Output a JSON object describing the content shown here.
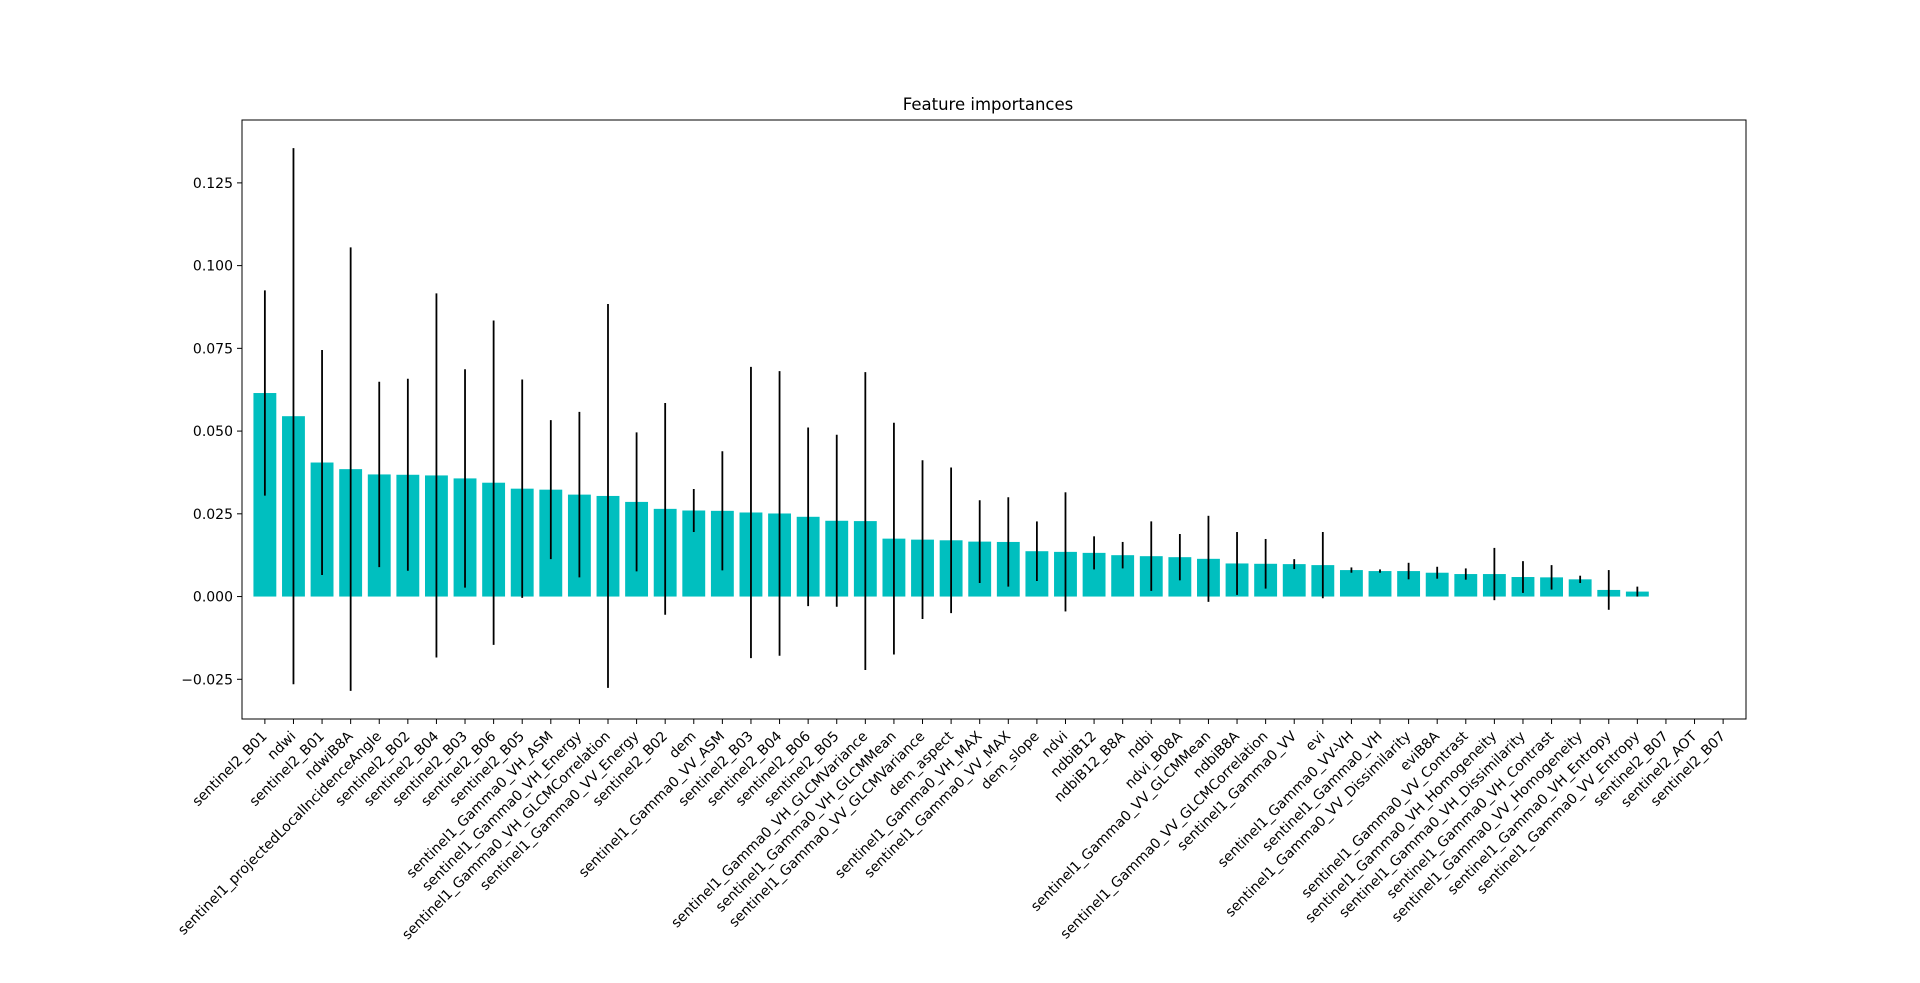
{
  "chart_data": {
    "type": "bar",
    "title": "Feature importances",
    "xlabel": "",
    "ylabel": "",
    "ylim": [
      -0.037,
      0.144
    ],
    "yticks": [
      -0.025,
      0.0,
      0.025,
      0.05,
      0.075,
      0.1,
      0.125
    ],
    "ytick_labels": [
      "−0.025",
      "0.000",
      "0.025",
      "0.050",
      "0.075",
      "0.100",
      "0.125"
    ],
    "grid": false,
    "bar_color": "#00bfbf",
    "error_bar_color": "#000000",
    "categories": [
      "sentinel2_B01",
      "ndwi",
      "sentinel2_B01",
      "ndwiB8A",
      "sentinel1_projectedLocalIncidenceAngle",
      "sentinel2_B02",
      "sentinel2_B04",
      "sentinel2_B03",
      "sentinel2_B06",
      "sentinel2_B05",
      "sentinel1_Gamma0_VH_ASM",
      "sentinel1_Gamma0_VH_Energy",
      "sentinel1_Gamma0_VH_GLCMCorrelation",
      "sentinel1_Gamma0_VV_Energy",
      "sentinel2_B02",
      "dem",
      "sentinel1_Gamma0_VV_ASM",
      "sentinel2_B03",
      "sentinel2_B04",
      "sentinel2_B06",
      "sentinel2_B05",
      "sentinel1_Gamma0_VH_GLCMVariance",
      "sentinel1_Gamma0_VH_GLCMMean",
      "sentinel1_Gamma0_VV_GLCMVariance",
      "dem_aspect",
      "sentinel1_Gamma0_VH_MAX",
      "sentinel1_Gamma0_VV_MAX",
      "dem_slope",
      "ndvi",
      "ndbiB12",
      "ndbiB12_B8A",
      "ndbi",
      "ndvi_B08A",
      "sentinel1_Gamma0_VV_GLCMMean",
      "ndbiB8A",
      "sentinel1_Gamma0_VV_GLCMCorrelation",
      "sentinel1_Gamma0_VV",
      "evi",
      "sentinel1_Gamma0_VV-VH",
      "sentinel1_Gamma0_VH",
      "sentinel1_Gamma0_VV_Dissimilarity",
      "eviB8A",
      "sentinel1_Gamma0_VV_Contrast",
      "sentinel1_Gamma0_VH_Homogeneity",
      "sentinel1_Gamma0_VH_Dissimilarity",
      "sentinel1_Gamma0_VH_Contrast",
      "sentinel1_Gamma0_VV_Homogeneity",
      "sentinel1_Gamma0_VH_Entropy",
      "sentinel1_Gamma0_VV_Entropy",
      "sentinel2_B07",
      "sentinel2_AOT",
      "sentinel2_B07"
    ],
    "values": [
      0.0615,
      0.0545,
      0.0405,
      0.0385,
      0.0369,
      0.0368,
      0.0366,
      0.0357,
      0.0344,
      0.0326,
      0.0323,
      0.0308,
      0.0304,
      0.0286,
      0.0265,
      0.026,
      0.0259,
      0.0254,
      0.0251,
      0.0241,
      0.0229,
      0.0228,
      0.0175,
      0.0172,
      0.017,
      0.0166,
      0.0165,
      0.0137,
      0.0135,
      0.0132,
      0.0125,
      0.0122,
      0.0119,
      0.0114,
      0.01,
      0.0099,
      0.0098,
      0.0095,
      0.008,
      0.0077,
      0.0077,
      0.0072,
      0.0068,
      0.0068,
      0.0059,
      0.0058,
      0.0052,
      0.002,
      0.0015,
      0.0,
      0.0,
      0.0
    ],
    "errors": [
      0.031,
      0.081,
      0.034,
      0.067,
      0.028,
      0.029,
      0.055,
      0.033,
      0.049,
      0.033,
      0.021,
      0.025,
      0.058,
      0.021,
      0.032,
      0.0065,
      0.018,
      0.044,
      0.043,
      0.027,
      0.026,
      0.045,
      0.035,
      0.024,
      0.022,
      0.0125,
      0.0135,
      0.009,
      0.018,
      0.005,
      0.004,
      0.0105,
      0.007,
      0.013,
      0.0095,
      0.0075,
      0.0015,
      0.01,
      0.0008,
      0.0005,
      0.0025,
      0.0018,
      0.0017,
      0.0079,
      0.0048,
      0.0037,
      0.0011,
      0.006,
      0.0015,
      0.0,
      0.0,
      0.0
    ]
  }
}
